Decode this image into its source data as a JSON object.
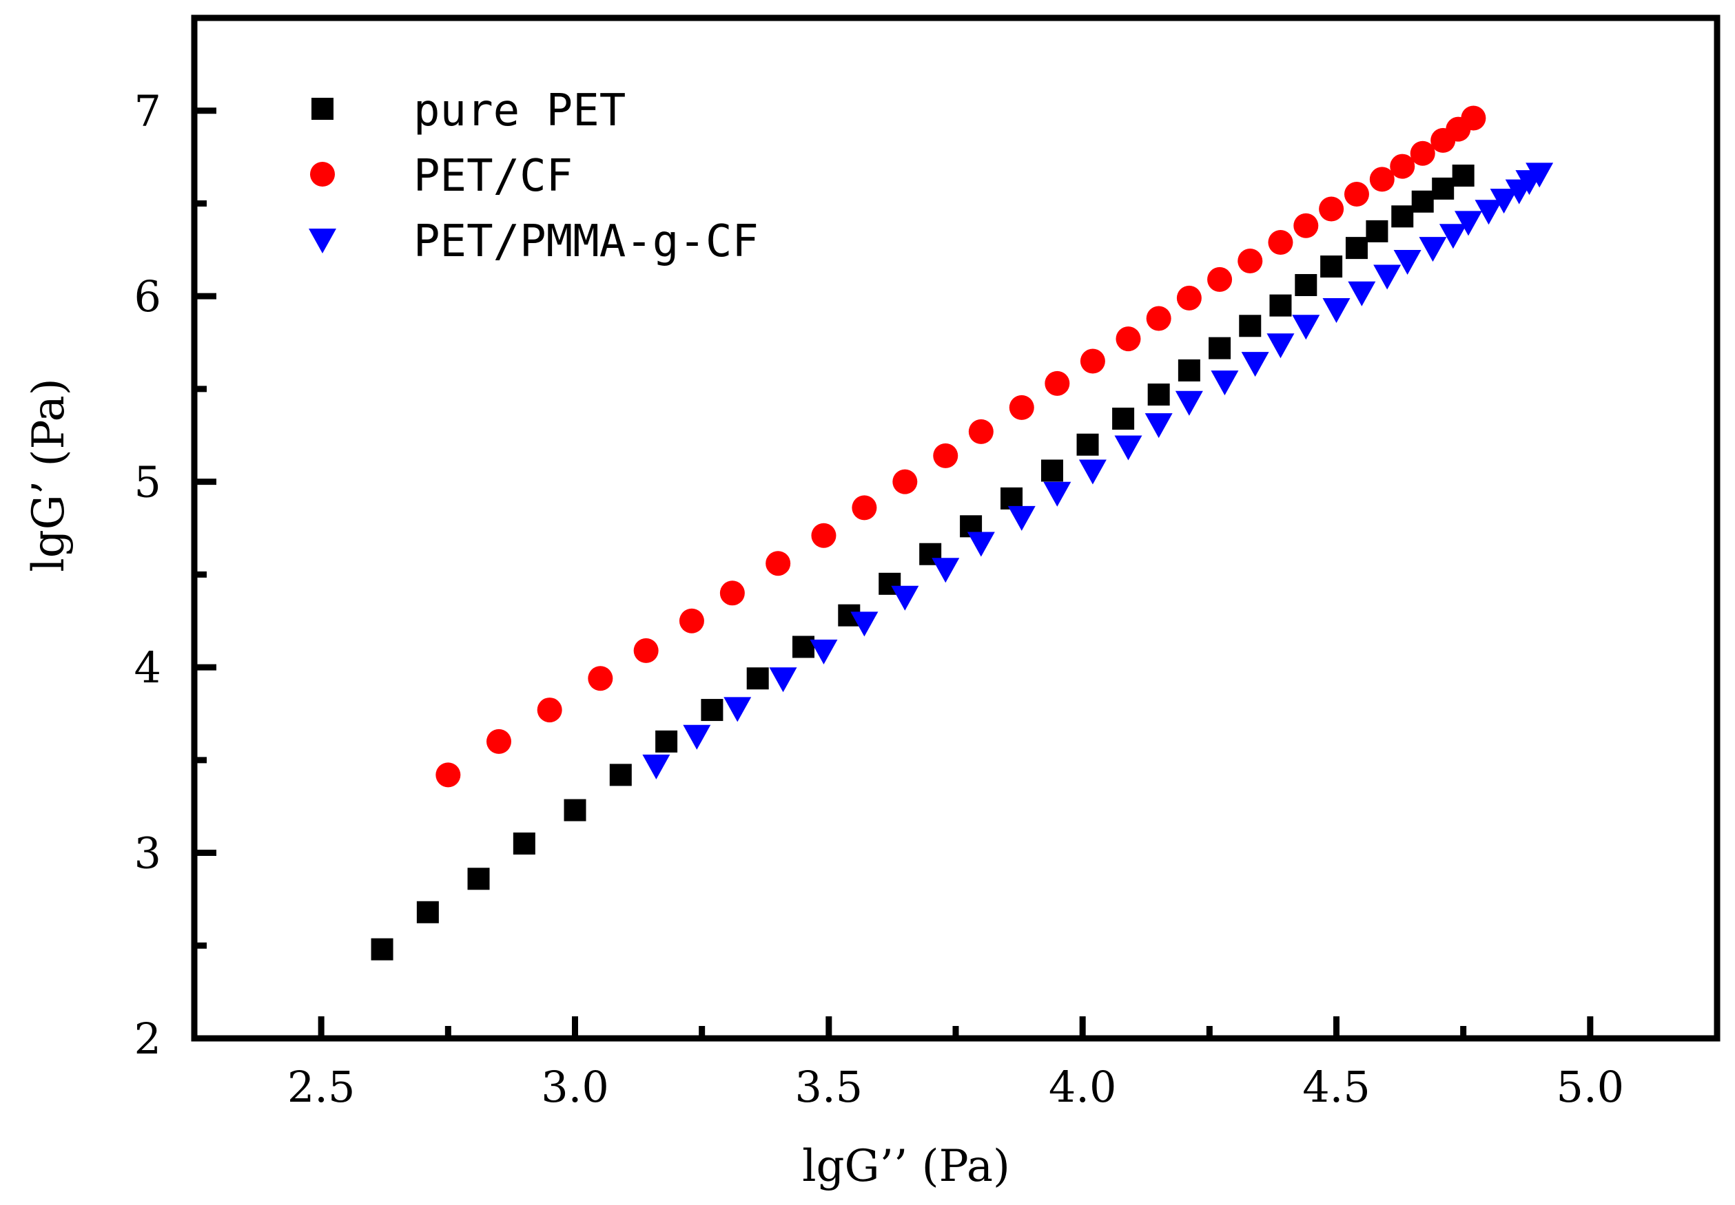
{
  "chart_data": {
    "type": "scatter",
    "title": "",
    "xlabel": "lgG’’ (Pa)",
    "ylabel": "lgG’ (Pa)",
    "xlim": [
      2.25,
      5.25
    ],
    "ylim": [
      2.0,
      7.5
    ],
    "xticks": [
      2.5,
      3.0,
      3.5,
      4.0,
      4.5,
      5.0
    ],
    "xtick_labels": [
      "2.5",
      "3.0",
      "3.5",
      "4.0",
      "4.5",
      "5.0"
    ],
    "yticks": [
      2,
      3,
      4,
      5,
      6,
      7
    ],
    "ytick_labels": [
      "2",
      "3",
      "4",
      "5",
      "6",
      "7"
    ],
    "grid": false,
    "legend_position": "top-left",
    "series": [
      {
        "name": "pure PET",
        "marker": "square",
        "color": "#000000",
        "points": [
          [
            2.62,
            2.48
          ],
          [
            2.71,
            2.68
          ],
          [
            2.81,
            2.86
          ],
          [
            2.9,
            3.05
          ],
          [
            3.0,
            3.23
          ],
          [
            3.09,
            3.42
          ],
          [
            3.18,
            3.6
          ],
          [
            3.27,
            3.77
          ],
          [
            3.36,
            3.94
          ],
          [
            3.45,
            4.11
          ],
          [
            3.54,
            4.28
          ],
          [
            3.62,
            4.45
          ],
          [
            3.7,
            4.61
          ],
          [
            3.78,
            4.76
          ],
          [
            3.86,
            4.91
          ],
          [
            3.94,
            5.06
          ],
          [
            4.01,
            5.2
          ],
          [
            4.08,
            5.34
          ],
          [
            4.15,
            5.47
          ],
          [
            4.21,
            5.6
          ],
          [
            4.27,
            5.72
          ],
          [
            4.33,
            5.84
          ],
          [
            4.39,
            5.95
          ],
          [
            4.44,
            6.06
          ],
          [
            4.49,
            6.16
          ],
          [
            4.54,
            6.26
          ],
          [
            4.58,
            6.35
          ],
          [
            4.63,
            6.43
          ],
          [
            4.67,
            6.51
          ],
          [
            4.71,
            6.58
          ],
          [
            4.75,
            6.65
          ]
        ]
      },
      {
        "name": "PET/CF",
        "marker": "circle",
        "color": "#ff0000",
        "points": [
          [
            2.75,
            3.42
          ],
          [
            2.85,
            3.6
          ],
          [
            2.95,
            3.77
          ],
          [
            3.05,
            3.94
          ],
          [
            3.14,
            4.09
          ],
          [
            3.23,
            4.25
          ],
          [
            3.31,
            4.4
          ],
          [
            3.4,
            4.56
          ],
          [
            3.49,
            4.71
          ],
          [
            3.57,
            4.86
          ],
          [
            3.65,
            5.0
          ],
          [
            3.73,
            5.14
          ],
          [
            3.8,
            5.27
          ],
          [
            3.88,
            5.4
          ],
          [
            3.95,
            5.53
          ],
          [
            4.02,
            5.65
          ],
          [
            4.09,
            5.77
          ],
          [
            4.15,
            5.88
          ],
          [
            4.21,
            5.99
          ],
          [
            4.27,
            6.09
          ],
          [
            4.33,
            6.19
          ],
          [
            4.39,
            6.29
          ],
          [
            4.44,
            6.38
          ],
          [
            4.49,
            6.47
          ],
          [
            4.54,
            6.55
          ],
          [
            4.59,
            6.63
          ],
          [
            4.63,
            6.7
          ],
          [
            4.67,
            6.77
          ],
          [
            4.71,
            6.84
          ],
          [
            4.74,
            6.9
          ],
          [
            4.77,
            6.96
          ]
        ]
      },
      {
        "name": "PET/PMMA-g-CF",
        "marker": "triangle-down",
        "color": "#0000ff",
        "points": [
          [
            3.16,
            3.47
          ],
          [
            3.24,
            3.63
          ],
          [
            3.32,
            3.78
          ],
          [
            3.41,
            3.94
          ],
          [
            3.49,
            4.09
          ],
          [
            3.57,
            4.24
          ],
          [
            3.65,
            4.38
          ],
          [
            3.73,
            4.53
          ],
          [
            3.8,
            4.67
          ],
          [
            3.88,
            4.81
          ],
          [
            3.95,
            4.94
          ],
          [
            4.02,
            5.06
          ],
          [
            4.09,
            5.19
          ],
          [
            4.15,
            5.31
          ],
          [
            4.21,
            5.43
          ],
          [
            4.28,
            5.54
          ],
          [
            4.34,
            5.64
          ],
          [
            4.39,
            5.74
          ],
          [
            4.44,
            5.84
          ],
          [
            4.5,
            5.93
          ],
          [
            4.55,
            6.02
          ],
          [
            4.6,
            6.11
          ],
          [
            4.64,
            6.19
          ],
          [
            4.69,
            6.26
          ],
          [
            4.73,
            6.33
          ],
          [
            4.76,
            6.4
          ],
          [
            4.8,
            6.46
          ],
          [
            4.83,
            6.52
          ],
          [
            4.86,
            6.57
          ],
          [
            4.88,
            6.62
          ],
          [
            4.9,
            6.66
          ]
        ]
      }
    ]
  }
}
